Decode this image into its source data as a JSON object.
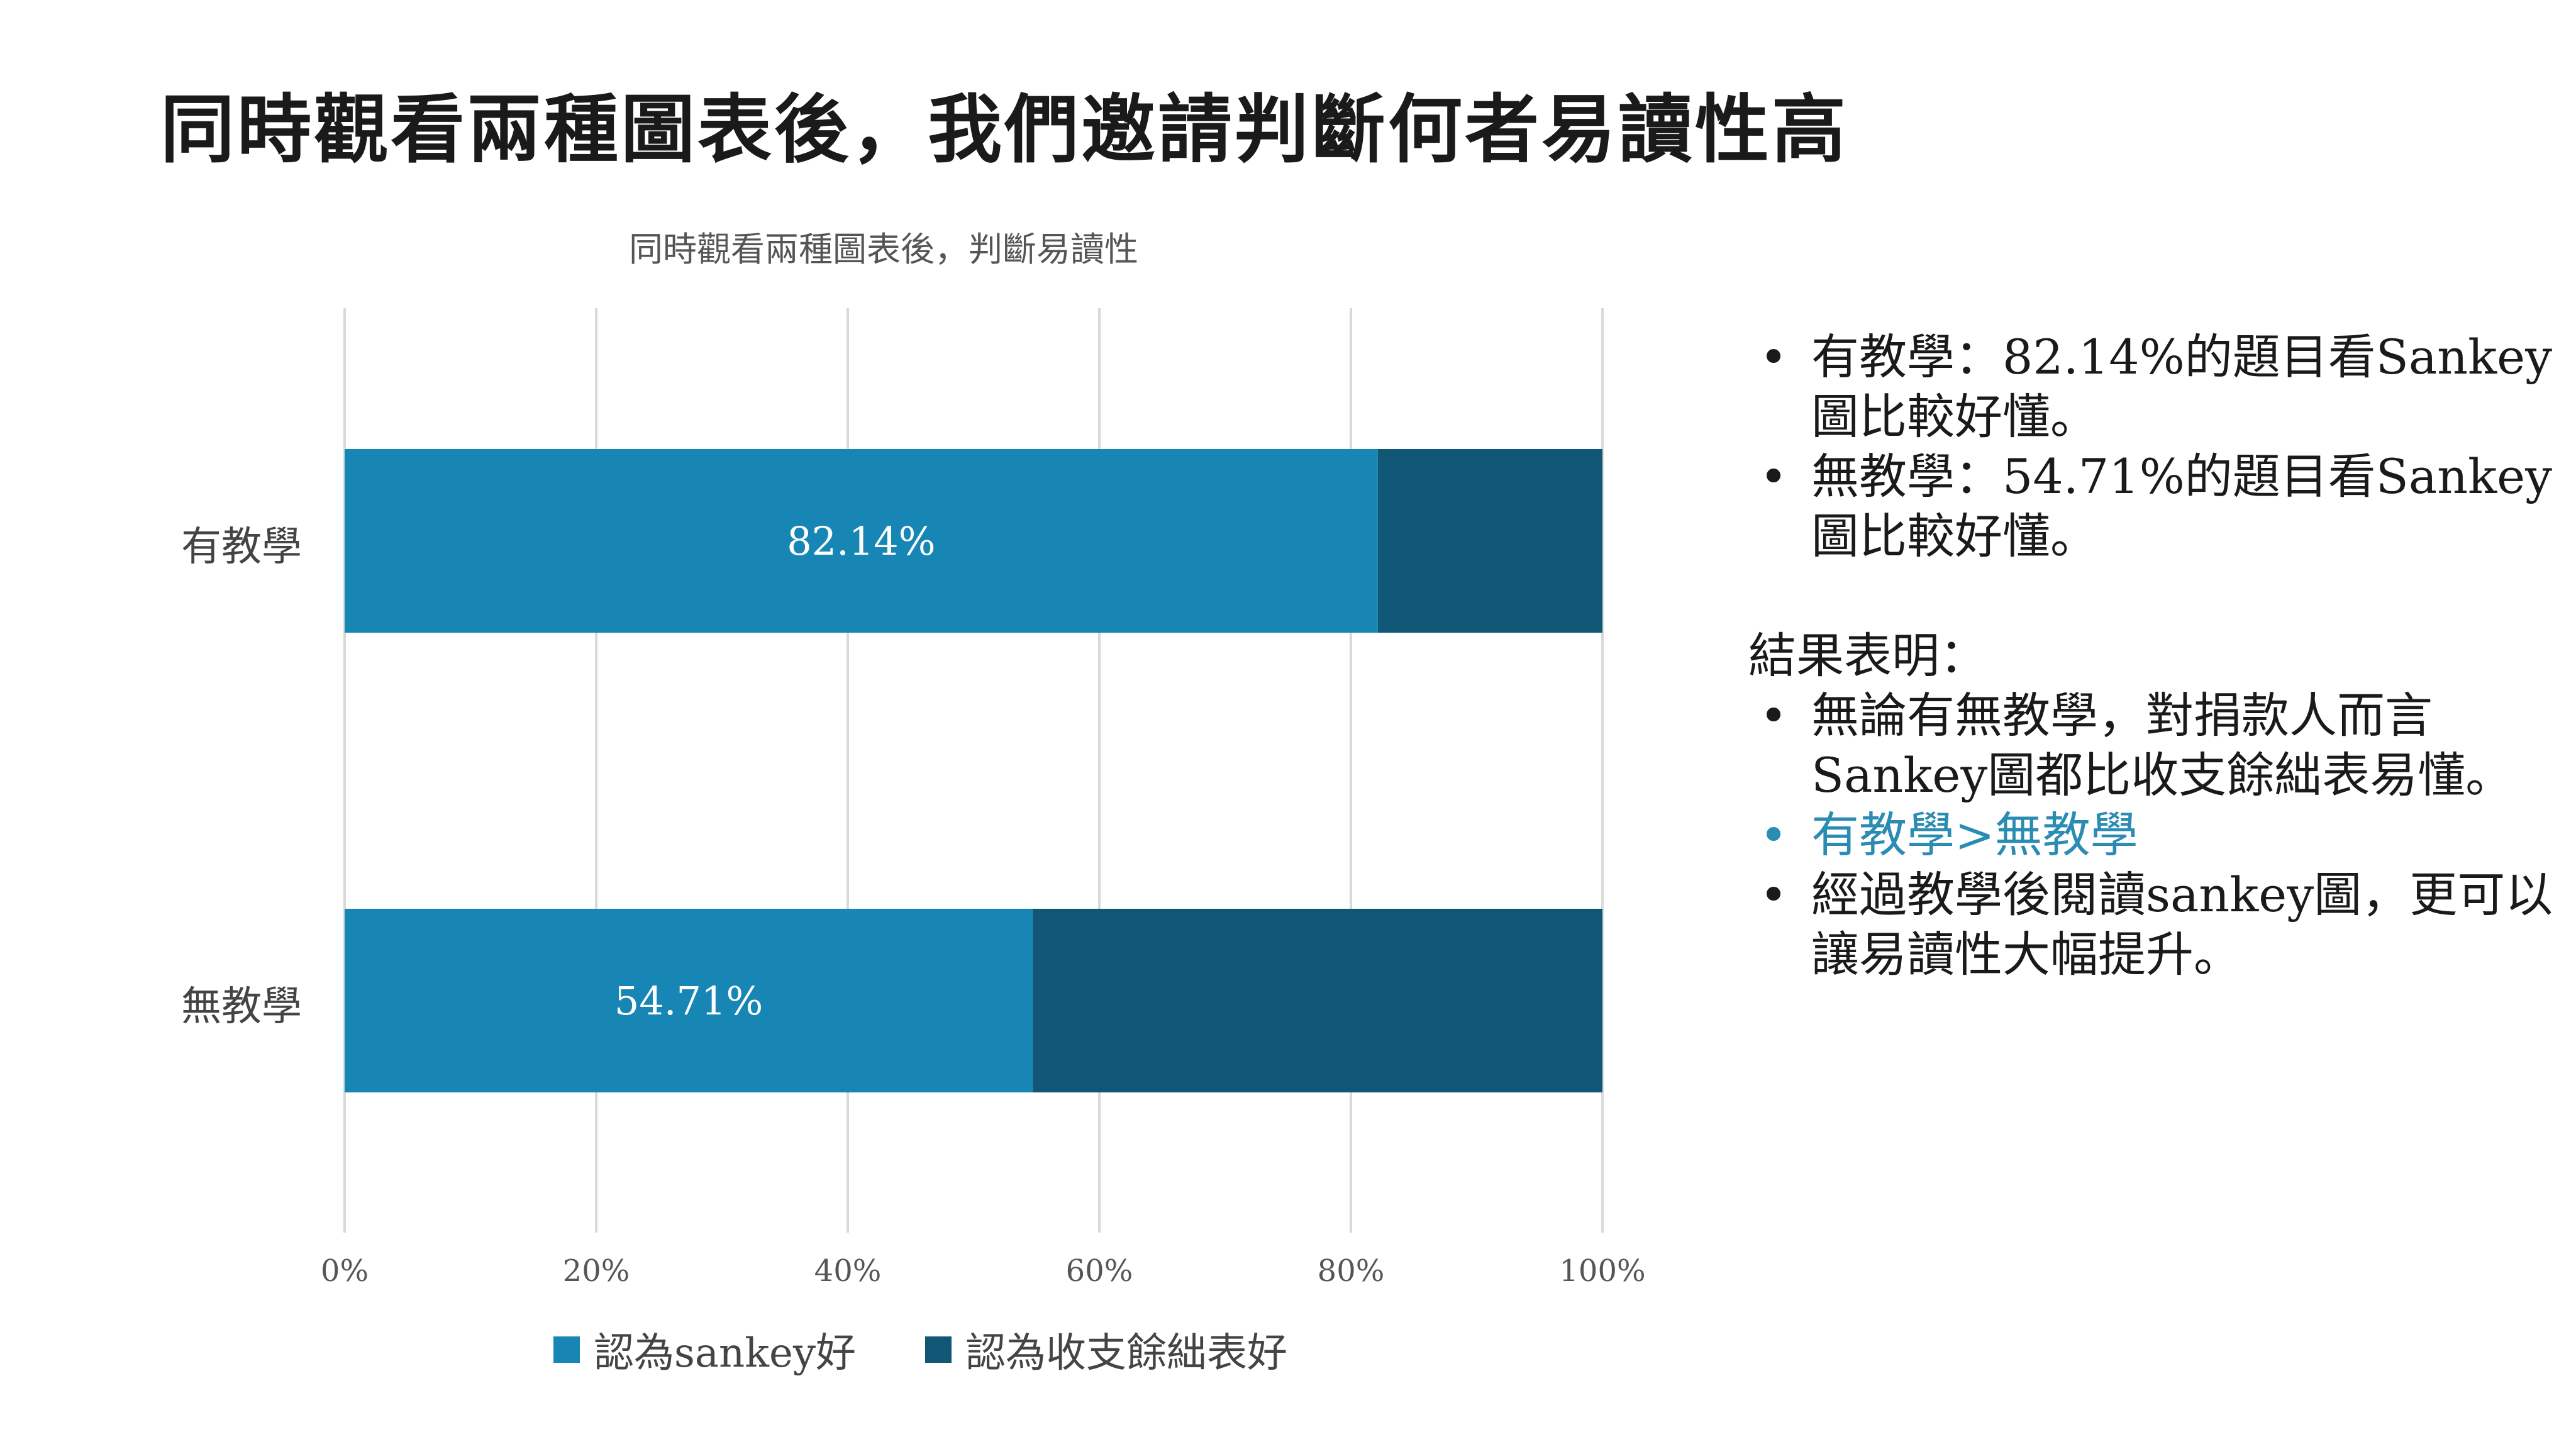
{
  "slide": {
    "title": "同時觀看兩種圖表後，我們邀請判斷何者易讀性高"
  },
  "colors": {
    "series_sankey": "#1786b4",
    "series_table": "#0f5774",
    "gridline": "#d9d9d9",
    "highlight_text": "#2a8bb3"
  },
  "chart_data": {
    "type": "bar",
    "orientation": "horizontal",
    "stacked": "percent",
    "title": "同時觀看兩種圖表後，判斷易讀性",
    "categories": [
      "有教學",
      "無教學"
    ],
    "series": [
      {
        "name": "認為sankey好",
        "values": [
          82.14,
          54.71
        ],
        "labels": [
          "82.14%",
          "54.71%"
        ]
      },
      {
        "name": "認為收支餘絀表好",
        "values": [
          17.86,
          45.29
        ]
      }
    ],
    "xlim": [
      0,
      100
    ],
    "x_ticks": [
      "0%",
      "20%",
      "40%",
      "60%",
      "80%",
      "100%"
    ],
    "grid": "vertical",
    "legend_position": "bottom"
  },
  "notes": {
    "bullets_top": [
      "有教學：82.14%的題目看Sankey圖比較好懂。",
      "無教學：54.71%的題目看Sankey圖比較好懂。"
    ],
    "heading": "結果表明：",
    "bullets_result": [
      "無論有無教學，對捐款人而言Sankey圖都比收支餘絀表易懂。",
      "有教學>無教學",
      "經過教學後閱讀sankey圖，更可以讓易讀性大幅提升。"
    ]
  }
}
